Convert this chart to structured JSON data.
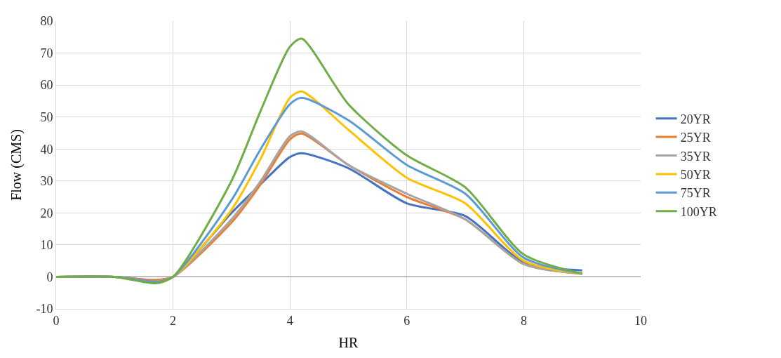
{
  "chart_data": {
    "type": "line",
    "xlabel": "HR",
    "ylabel": "Flow (CMS)",
    "x": [
      0,
      1,
      1.7,
      2,
      3,
      3.5,
      4,
      4.2,
      5,
      6,
      7,
      8,
      9
    ],
    "xlim": [
      0,
      10
    ],
    "xticks": [
      0,
      2,
      4,
      6,
      8,
      10
    ],
    "ylim": [
      -10,
      80
    ],
    "yticks": [
      -10,
      0,
      10,
      20,
      30,
      40,
      50,
      60,
      70,
      80
    ],
    "grid": true,
    "legend": "right",
    "marker": "none",
    "line_style": "solid",
    "series": [
      {
        "name": "20YR",
        "color": "#4472c4",
        "values": [
          0,
          0,
          -1,
          0,
          20,
          29,
          37.5,
          38.7,
          34,
          23,
          19,
          4.5,
          2
        ]
      },
      {
        "name": "25YR",
        "color": "#ed7d31",
        "values": [
          0,
          0,
          -1,
          0,
          17,
          29,
          43,
          44.8,
          35,
          25,
          18,
          4,
          1
        ]
      },
      {
        "name": "35YR",
        "color": "#a5a5a5",
        "values": [
          0,
          0,
          -1.5,
          0,
          18,
          30,
          44,
          45.5,
          35,
          26,
          18,
          4,
          1
        ]
      },
      {
        "name": "50YR",
        "color": "#ffc000",
        "values": [
          null,
          null,
          -1.5,
          0,
          21,
          37,
          56,
          58,
          46,
          31,
          23,
          5,
          1
        ]
      },
      {
        "name": "75YR",
        "color": "#5b9bd5",
        "values": [
          0,
          0,
          -1.5,
          0,
          24,
          40,
          54,
          56,
          49,
          35,
          26,
          6,
          1
        ]
      },
      {
        "name": "100YR",
        "color": "#70ad47",
        "values": [
          0,
          0,
          -2,
          0,
          30,
          52,
          72,
          74.5,
          54,
          38,
          28,
          7,
          1
        ]
      }
    ]
  }
}
